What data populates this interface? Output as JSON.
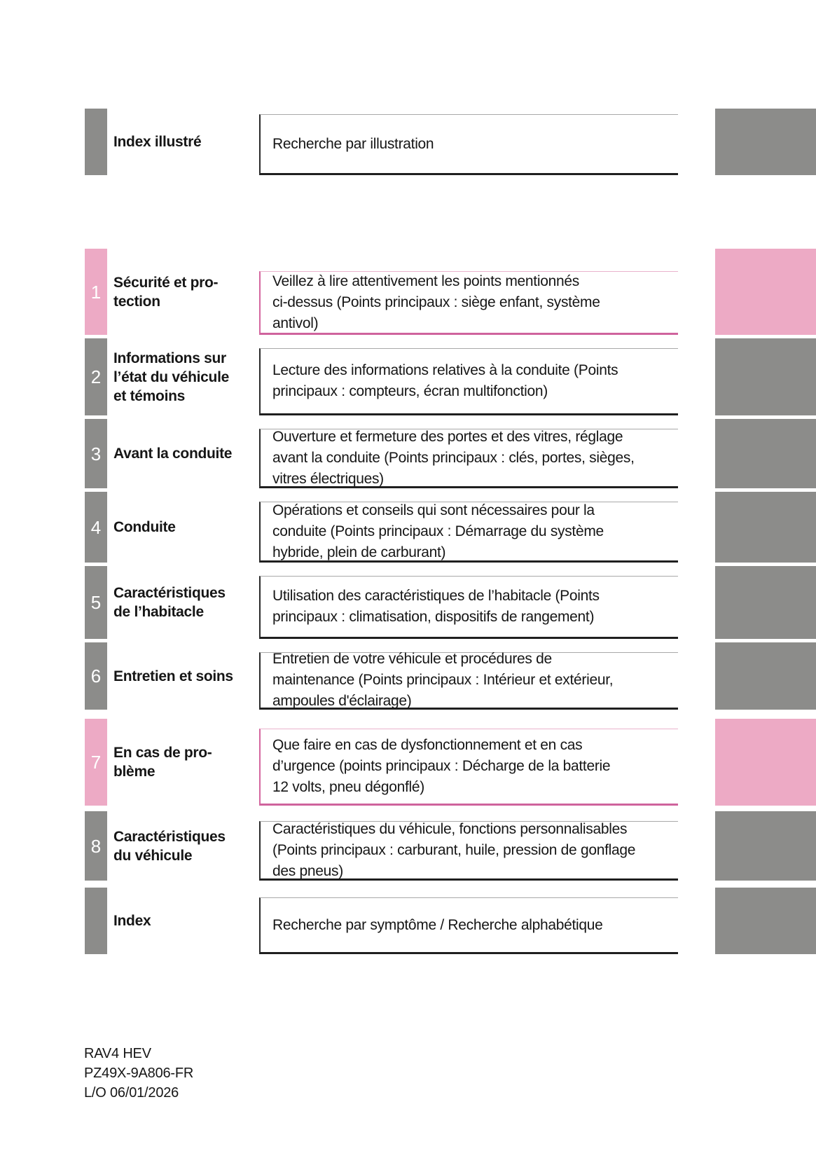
{
  "colors": {
    "pink": "#edaac5",
    "gray": "#8c8c8a",
    "pink_border": "#cf639d",
    "dark_border": "#1f1f1f"
  },
  "rows": [
    {
      "number": "",
      "title": "Index illustré",
      "description": "Recherche par illustration",
      "theme": "gray"
    },
    {
      "number": "1",
      "title": "Sécurité et pro-\ntection",
      "description": "Veillez à lire attentivement les points mentionnés\nci-dessus (Points principaux : siège enfant, système\nantivol)",
      "theme": "pink"
    },
    {
      "number": "2",
      "title": "Informations sur\nl’état du véhicule\net témoins",
      "description": "Lecture des informations relatives à la conduite (Points\nprincipaux : compteurs, écran multifonction)",
      "theme": "gray"
    },
    {
      "number": "3",
      "title": "Avant la conduite",
      "description": "Ouverture et fermeture des portes et des vitres, réglage\navant la conduite (Points principaux : clés, portes, sièges,\nvitres électriques)",
      "theme": "gray"
    },
    {
      "number": "4",
      "title": "Conduite",
      "description": "Opérations et conseils qui sont nécessaires pour la\nconduite (Points principaux : Démarrage du système\nhybride, plein de carburant)",
      "theme": "gray"
    },
    {
      "number": "5",
      "title": "Caractéristiques\nde l’habitacle",
      "description": "Utilisation des caractéristiques de l’habitacle (Points\nprincipaux : climatisation, dispositifs de rangement)",
      "theme": "gray"
    },
    {
      "number": "6",
      "title": "Entretien et soins",
      "description": "Entretien de votre véhicule et procédures de\nmaintenance (Points principaux : Intérieur et extérieur,\nampoules d'éclairage)",
      "theme": "gray"
    },
    {
      "number": "7",
      "title": "En cas de pro-\nblème",
      "description": "Que faire en cas de dysfonctionnement et en cas\nd’urgence (points principaux : Décharge de la batterie\n12 volts, pneu dégonflé)",
      "theme": "pink"
    },
    {
      "number": "8",
      "title": "Caractéristiques\ndu véhicule",
      "description": "Caractéristiques du véhicule, fonctions personnalisables\n(Points principaux : carburant, huile, pression de gonflage\ndes pneus)",
      "theme": "gray"
    },
    {
      "number": "",
      "title": "Index",
      "description": "Recherche par symptôme / Recherche alphabétique",
      "theme": "gray"
    }
  ],
  "footer": [
    "RAV4 HEV",
    "PZ49X-9A806-FR",
    "L/O 06/01/2026"
  ]
}
